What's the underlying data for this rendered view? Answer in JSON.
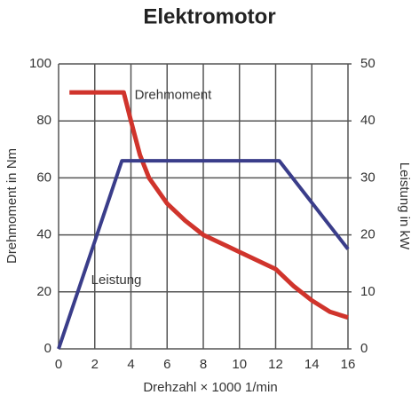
{
  "chart_data": {
    "type": "line",
    "title": "Elektromotor",
    "x_label": "Drehzahl × 1000 1/min",
    "y_label": "Drehmoment in Nm",
    "y2_label": "Leistung in kW",
    "xlim": [
      0,
      16
    ],
    "xticks": [
      0,
      2,
      4,
      6,
      8,
      10,
      12,
      14,
      16
    ],
    "ylim": [
      0,
      100
    ],
    "yticks": [
      0,
      20,
      40,
      60,
      80,
      100
    ],
    "y2lim": [
      0,
      50
    ],
    "y2ticks": [
      0,
      10,
      20,
      30,
      40,
      50
    ],
    "grid": true,
    "series": [
      {
        "name": "Drehmoment",
        "color": "#d0342c",
        "x": [
          0.6,
          3.6,
          4.0,
          4.5,
          5,
          6,
          7,
          8,
          10,
          12,
          13,
          14,
          15,
          16
        ],
        "values": [
          90,
          90,
          80,
          68,
          60,
          51,
          45,
          40,
          34,
          28,
          22,
          17,
          13,
          11
        ]
      },
      {
        "name": "Leistung",
        "color": "#3a3d8a",
        "axis": "y2",
        "x": [
          0,
          3.5,
          12.2,
          16
        ],
        "values": [
          0,
          33,
          33,
          17.5
        ]
      }
    ]
  }
}
